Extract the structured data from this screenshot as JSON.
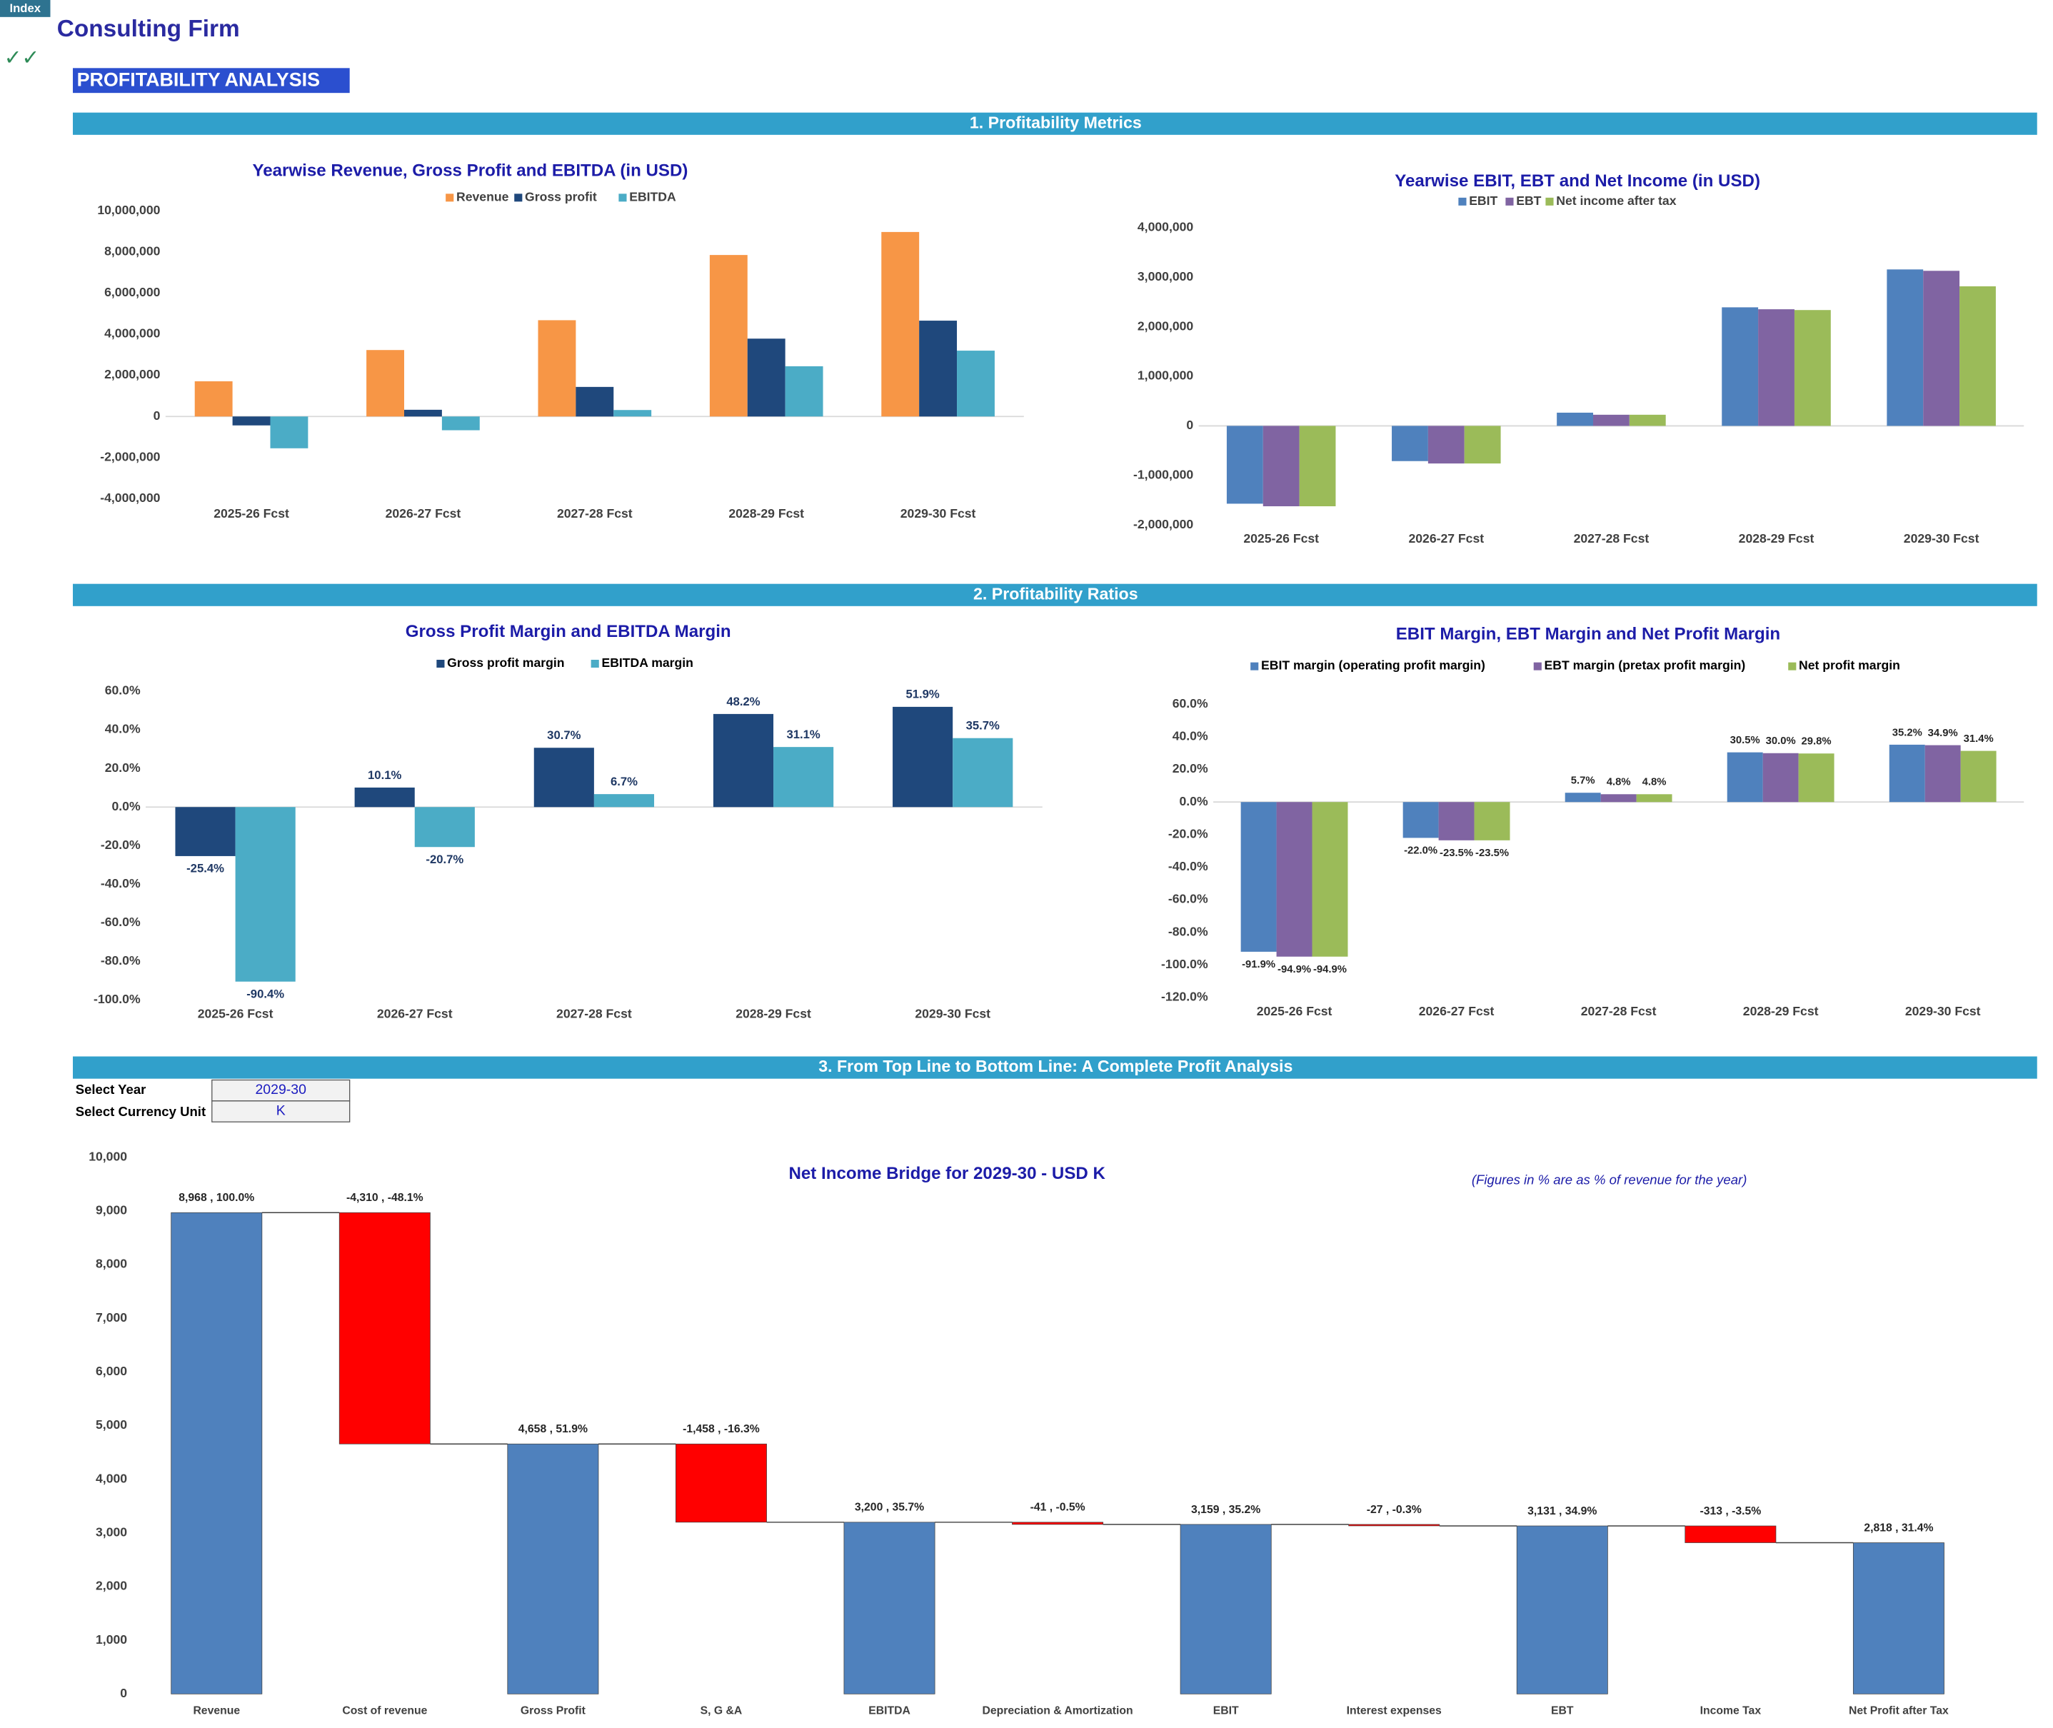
{
  "header": {
    "index_button": "Index",
    "company": "Consulting Firm",
    "check": "✓✓",
    "page_title": "PROFITABILITY ANALYSIS"
  },
  "sections": [
    "1. Profitability Metrics",
    "2. Profitability Ratios",
    "3. From Top Line to Bottom Line: A Complete Profit Analysis"
  ],
  "controls": {
    "year_label": "Select Year",
    "year": "2029-30",
    "unit_label": "Select Currency Unit",
    "unit": "K"
  },
  "note": "(Figures in % are as % of revenue for the year)",
  "chart_data": [
    {
      "type": "bar",
      "title": "Yearwise Revenue, Gross Profit and EBITDA (in USD)",
      "categories": [
        "2025-26 Fcst",
        "2026-27 Fcst",
        "2027-28 Fcst",
        "2028-29 Fcst",
        "2029-30 Fcst"
      ],
      "series": [
        {
          "name": "Revenue",
          "color": "#f79646",
          "values": [
            1710000,
            3230000,
            4680000,
            7850000,
            8968000
          ]
        },
        {
          "name": "Gross profit",
          "color": "#1f487c",
          "values": [
            -434000,
            326000,
            1437000,
            3784000,
            4658000
          ]
        },
        {
          "name": "EBITDA",
          "color": "#4bacc6",
          "values": [
            -1546000,
            -669000,
            314000,
            2441000,
            3200000
          ]
        }
      ],
      "ylim": [
        -4000000,
        10000000
      ],
      "yticks": [
        {
          "value": -4000000,
          "label": "-4,000,000"
        },
        {
          "value": -2000000,
          "label": "-2,000,000"
        },
        0,
        {
          "value": 2000000,
          "label": "2,000,000"
        },
        {
          "value": 4000000,
          "label": "4,000,000"
        },
        {
          "value": 6000000,
          "label": "6,000,000"
        },
        {
          "value": 8000000,
          "label": "8,000,000"
        },
        {
          "value": 10000000,
          "label": "10,000,000"
        }
      ],
      "grid": false,
      "legend": "top"
    },
    {
      "type": "bar",
      "title": "Yearwise EBIT, EBT and Net Income (in USD)",
      "categories": [
        "2025-26 Fcst",
        "2026-27 Fcst",
        "2027-28 Fcst",
        "2028-29 Fcst",
        "2029-30 Fcst"
      ],
      "series": [
        {
          "name": "EBIT",
          "color": "#4f81bd",
          "values": [
            -1571000,
            -711000,
            267000,
            2394000,
            3159000
          ]
        },
        {
          "name": "EBT",
          "color": "#8064a2",
          "values": [
            -1623000,
            -759000,
            225000,
            2355000,
            3131000
          ]
        },
        {
          "name": "Net income after tax",
          "color": "#9bbb59",
          "values": [
            -1623000,
            -759000,
            225000,
            2339000,
            2818000
          ]
        }
      ],
      "ylim": [
        -2000000,
        4000000
      ],
      "yticks": [
        {
          "value": -2000000,
          "label": "-2,000,000"
        },
        {
          "value": -1000000,
          "label": "-1,000,000"
        },
        0,
        {
          "value": 1000000,
          "label": "1,000,000"
        },
        {
          "value": 2000000,
          "label": "2,000,000"
        },
        {
          "value": 3000000,
          "label": "3,000,000"
        },
        {
          "value": 4000000,
          "label": "4,000,000"
        }
      ],
      "grid": false,
      "legend": "top"
    },
    {
      "type": "bar",
      "title": "Gross Profit Margin and  EBITDA Margin",
      "categories": [
        "2025-26 Fcst",
        "2026-27 Fcst",
        "2027-28 Fcst",
        "2028-29 Fcst",
        "2029-30 Fcst"
      ],
      "series": [
        {
          "name": "Gross profit margin",
          "color": "#1f487c",
          "values": [
            -25.4,
            10.1,
            30.7,
            48.2,
            51.9
          ],
          "value_labels": [
            "-25.4%",
            "10.1%",
            "30.7%",
            "48.2%",
            "51.9%"
          ]
        },
        {
          "name": "EBITDA margin",
          "color": "#4bacc6",
          "values": [
            -90.4,
            -20.7,
            6.7,
            31.1,
            35.7
          ],
          "value_labels": [
            "-90.4%",
            "-20.7%",
            "6.7%",
            "31.1%",
            "35.7%"
          ]
        }
      ],
      "ylim": [
        -100,
        60
      ],
      "yticks": [
        {
          "value": -100,
          "label": "-100.0%"
        },
        {
          "value": -80,
          "label": "-80.0%"
        },
        {
          "value": -60,
          "label": "-60.0%"
        },
        {
          "value": -40,
          "label": "-40.0%"
        },
        {
          "value": -20,
          "label": "-20.0%"
        },
        {
          "value": 0,
          "label": "0.0%"
        },
        {
          "value": 20,
          "label": "20.0%"
        },
        {
          "value": 40,
          "label": "40.0%"
        },
        {
          "value": 60,
          "label": "60.0%"
        }
      ],
      "grid": false,
      "legend": "top"
    },
    {
      "type": "bar",
      "title": "EBIT Margin, EBT Margin and Net Profit Margin",
      "categories": [
        "2025-26 Fcst",
        "2026-27 Fcst",
        "2027-28 Fcst",
        "2028-29 Fcst",
        "2029-30 Fcst"
      ],
      "series": [
        {
          "name": "EBIT margin (operating profit margin)",
          "color": "#4f81bd",
          "values": [
            -91.9,
            -22.0,
            5.7,
            30.5,
            35.2
          ],
          "value_labels": [
            "-91.9%",
            "-22.0%",
            "5.7%",
            "30.5%",
            "35.2%"
          ]
        },
        {
          "name": "EBT margin (pretax profit margin)",
          "color": "#8064a2",
          "values": [
            -94.9,
            -23.5,
            4.8,
            30.0,
            34.9
          ],
          "value_labels": [
            "-94.9%",
            "-23.5%",
            "4.8%",
            "30.0%",
            "34.9%"
          ]
        },
        {
          "name": "Net profit margin",
          "color": "#9bbb59",
          "values": [
            -94.9,
            -23.5,
            4.8,
            29.8,
            31.4
          ],
          "value_labels": [
            "-94.9%",
            "-23.5%",
            "4.8%",
            "29.8%",
            "31.4%"
          ]
        }
      ],
      "ylim": [
        -120,
        60
      ],
      "yticks": [
        {
          "value": -120,
          "label": "-120.0%"
        },
        {
          "value": -100,
          "label": "-100.0%"
        },
        {
          "value": -80,
          "label": "-80.0%"
        },
        {
          "value": -60,
          "label": "-60.0%"
        },
        {
          "value": -40,
          "label": "-40.0%"
        },
        {
          "value": -20,
          "label": "-20.0%"
        },
        {
          "value": 0,
          "label": "0.0%"
        },
        {
          "value": 20,
          "label": "20.0%"
        },
        {
          "value": 40,
          "label": "40.0%"
        },
        {
          "value": 60,
          "label": "60.0%"
        }
      ],
      "grid": false,
      "legend": "top"
    },
    {
      "type": "waterfall",
      "title": "Net Income Bridge for 2029-30 - USD K",
      "categories": [
        "Revenue",
        "Cost of revenue",
        "Gross Profit",
        "S, G &A",
        "EBITDA",
        "Depreciation & Amortization",
        "EBIT",
        "Interest expenses",
        "EBT",
        "Income Tax",
        "Net Profit after Tax"
      ],
      "values": [
        8968,
        -4310,
        4658,
        -1458,
        3200,
        -41,
        3159,
        -27,
        3131,
        -313,
        2818
      ],
      "value_labels": [
        "8,968 , 100.0%",
        "-4,310 , -48.1%",
        "4,658 , 51.9%",
        "-1,458 , -16.3%",
        "3,200 , 35.7%",
        "-41 , -0.5%",
        "3,159 , 35.2%",
        "-27 , -0.3%",
        "3,131 , 34.9%",
        "-313 , -3.5%",
        "2,818 , 31.4%"
      ],
      "color": "#4f81bd",
      "negative_color": "#ff0000",
      "ylim": [
        0,
        10000
      ],
      "yticks": [
        0,
        {
          "value": 1000,
          "label": "1,000"
        },
        {
          "value": 2000,
          "label": "2,000"
        },
        {
          "value": 3000,
          "label": "3,000"
        },
        {
          "value": 4000,
          "label": "4,000"
        },
        {
          "value": 5000,
          "label": "5,000"
        },
        {
          "value": 6000,
          "label": "6,000"
        },
        {
          "value": 7000,
          "label": "7,000"
        },
        {
          "value": 8000,
          "label": "8,000"
        },
        {
          "value": 9000,
          "label": "9,000"
        },
        {
          "value": 10000,
          "label": "10,000"
        }
      ],
      "grid": false
    }
  ]
}
